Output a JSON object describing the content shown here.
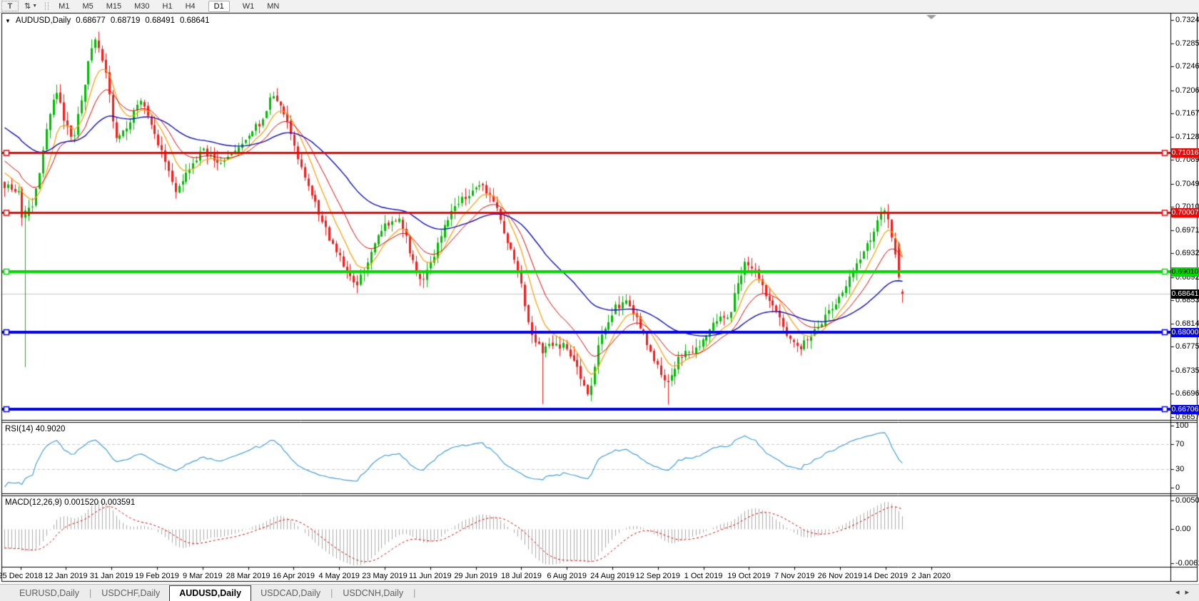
{
  "ui": {
    "toolbar": {
      "text_tool_label": "T",
      "arrow_tool_glyph": "⇅",
      "dropdown_glyph": "▼",
      "timeframes": [
        "M1",
        "M5",
        "M15",
        "M30",
        "H1",
        "H4",
        "D1",
        "W1",
        "MN"
      ],
      "active_timeframe": "D1"
    },
    "title": {
      "collapse_icon": "▼",
      "symbol_label": "AUDUSD,Daily"
    },
    "tabs": {
      "items": [
        "EURUSD,Daily",
        "USDCHF,Daily",
        "AUDUSD,Daily",
        "USDCAD,Daily",
        "USDCNH,Daily"
      ],
      "active_index": 2
    },
    "nav": {
      "left": "◂",
      "right": "▸"
    }
  },
  "chart_data": {
    "type": "candlestick",
    "symbol": "AUDUSD",
    "timeframe": "Daily",
    "ohlc": {
      "open": "0.68677",
      "high": "0.68719",
      "low": "0.68491",
      "close": "0.68641"
    },
    "bars": 258,
    "candle_colors": {
      "up": "#00BE00",
      "down": "#FF1A1A"
    },
    "price_axis": {
      "ticks": [
        0.7324,
        0.7285,
        0.7246,
        0.7206,
        0.7167,
        0.7128,
        0.7089,
        0.7049,
        0.701,
        0.6971,
        0.6932,
        0.6892,
        0.6853,
        0.6814,
        0.6775,
        0.6735,
        0.6696,
        0.6657
      ]
    },
    "horizontal_lines": [
      {
        "value": "0.71016",
        "price": 0.71016,
        "color": "#FF0000",
        "text_color": "#FFFFFF",
        "width": 3
      },
      {
        "value": "0.70007",
        "price": 0.70007,
        "color": "#FF0000",
        "text_color": "#FFFFFF",
        "width": 3
      },
      {
        "value": "0.69010",
        "price": 0.6901,
        "color": "#00DC00",
        "text_color": "#000000",
        "width": 4
      },
      {
        "value": "0.68000",
        "price": 0.68,
        "color": "#0000FF",
        "text_color": "#FFFFFF",
        "width": 4
      },
      {
        "value": "0.66706",
        "price": 0.66706,
        "color": "#0000FF",
        "text_color": "#FFFFFF",
        "width": 4
      }
    ],
    "current_price": {
      "value": "0.68641",
      "price": 0.68641,
      "line_color": "#C6C6C6",
      "badge_bg": "#000000",
      "text_color": "#FFFFFF"
    },
    "moving_averages": [
      {
        "name": "fast-ma",
        "period": 8,
        "color": "#FF9C00",
        "width": 1.2
      },
      {
        "name": "medium-ma",
        "period": 16,
        "color": "#E00000",
        "width": 1
      },
      {
        "name": "slow-ma",
        "period": 45,
        "color": "#0F0FBE",
        "width": 1.4
      }
    ],
    "price_path_anchors": [
      [
        0.0,
        0.7048
      ],
      [
        0.008,
        0.7042
      ],
      [
        0.016,
        0.7038
      ],
      [
        0.022,
        0.7
      ],
      [
        0.032,
        0.701
      ],
      [
        0.042,
        0.7095
      ],
      [
        0.052,
        0.718
      ],
      [
        0.058,
        0.721
      ],
      [
        0.066,
        0.7155
      ],
      [
        0.076,
        0.712
      ],
      [
        0.086,
        0.719
      ],
      [
        0.096,
        0.7272
      ],
      [
        0.102,
        0.7287
      ],
      [
        0.112,
        0.724
      ],
      [
        0.124,
        0.712
      ],
      [
        0.138,
        0.7152
      ],
      [
        0.152,
        0.719
      ],
      [
        0.164,
        0.714
      ],
      [
        0.178,
        0.709
      ],
      [
        0.192,
        0.7032
      ],
      [
        0.206,
        0.7072
      ],
      [
        0.22,
        0.7105
      ],
      [
        0.236,
        0.7085
      ],
      [
        0.252,
        0.71
      ],
      [
        0.27,
        0.7122
      ],
      [
        0.286,
        0.7155
      ],
      [
        0.298,
        0.7196
      ],
      [
        0.31,
        0.7175
      ],
      [
        0.322,
        0.7115
      ],
      [
        0.336,
        0.705
      ],
      [
        0.35,
        0.7
      ],
      [
        0.364,
        0.695
      ],
      [
        0.38,
        0.6905
      ],
      [
        0.392,
        0.6872
      ],
      [
        0.408,
        0.6936
      ],
      [
        0.424,
        0.6976
      ],
      [
        0.44,
        0.6992
      ],
      [
        0.454,
        0.6926
      ],
      [
        0.466,
        0.688
      ],
      [
        0.478,
        0.6926
      ],
      [
        0.492,
        0.699
      ],
      [
        0.51,
        0.7022
      ],
      [
        0.53,
        0.7044
      ],
      [
        0.544,
        0.7028
      ],
      [
        0.558,
        0.6956
      ],
      [
        0.572,
        0.6906
      ],
      [
        0.584,
        0.6812
      ],
      [
        0.598,
        0.6766
      ],
      [
        0.612,
        0.6782
      ],
      [
        0.628,
        0.6772
      ],
      [
        0.642,
        0.6722
      ],
      [
        0.652,
        0.6696
      ],
      [
        0.664,
        0.6798
      ],
      [
        0.68,
        0.684
      ],
      [
        0.694,
        0.6856
      ],
      [
        0.71,
        0.68
      ],
      [
        0.724,
        0.6756
      ],
      [
        0.738,
        0.6706
      ],
      [
        0.752,
        0.6758
      ],
      [
        0.772,
        0.6772
      ],
      [
        0.79,
        0.681
      ],
      [
        0.808,
        0.6832
      ],
      [
        0.824,
        0.6916
      ],
      [
        0.838,
        0.6898
      ],
      [
        0.852,
        0.6852
      ],
      [
        0.868,
        0.6808
      ],
      [
        0.884,
        0.6772
      ],
      [
        0.9,
        0.6792
      ],
      [
        0.914,
        0.6828
      ],
      [
        0.928,
        0.6852
      ],
      [
        0.944,
        0.69
      ],
      [
        0.958,
        0.6932
      ],
      [
        0.974,
        0.6992
      ],
      [
        0.982,
        0.7006
      ],
      [
        0.99,
        0.695
      ],
      [
        1.0,
        0.6864
      ]
    ],
    "special_bars": {
      "5": {
        "o": 0.704,
        "h": 0.7044,
        "l": 0.6978,
        "c": 0.6992
      },
      "6": {
        "o": 0.6992,
        "h": 0.7012,
        "l": 0.6741,
        "c": 0.7004
      },
      "26": {
        "h": 0.7295
      },
      "154": {
        "l": 0.6679
      },
      "190": {
        "l": 0.6678
      },
      "256": {
        "o": 0.6948,
        "h": 0.6952,
        "l": 0.6888,
        "c": 0.6892
      },
      "257": {
        "o": 0.68677,
        "h": 0.68719,
        "l": 0.68491,
        "c": 0.68641
      }
    },
    "rsi": {
      "label": "RSI(14) 40.9020",
      "period": 14,
      "value": 40.902,
      "ticks": [
        100,
        70,
        30,
        0
      ],
      "levels": [
        70,
        30
      ],
      "line_color": "#42A0E0",
      "level_color": "#C8C8C8"
    },
    "macd": {
      "label": "MACD(12,26,9) 0.001520 0.003591",
      "fast": 12,
      "slow": 26,
      "signal": 9,
      "main_value": 0.00152,
      "signal_value": 0.003591,
      "ticks": [
        {
          "v": 0.005076,
          "label": "0.005076"
        },
        {
          "v": 0,
          "label": "0.00"
        },
        {
          "v": -0.006149,
          "label": "-0.006149"
        }
      ],
      "histogram_color": "#ABABAB",
      "signal_color": "#E00000"
    },
    "date_axis": [
      "25 Dec 2018",
      "12 Jan 2019",
      "31 Jan 2019",
      "19 Feb 2019",
      "9 Mar 2019",
      "28 Mar 2019",
      "16 Apr 2019",
      "4 May 2019",
      "23 May 2019",
      "11 Jun 2019",
      "29 Jun 2019",
      "18 Jul 2019",
      "6 Aug 2019",
      "24 Aug 2019",
      "12 Sep 2019",
      "1 Oct 2019",
      "19 Oct 2019",
      "7 Nov 2019",
      "26 Nov 2019",
      "14 Dec 2019",
      "2 Jan 2020"
    ]
  }
}
